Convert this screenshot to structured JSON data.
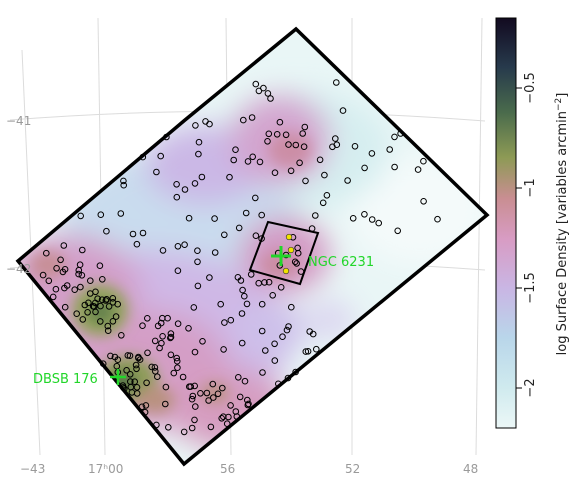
{
  "chart_data": {
    "type": "heatmap",
    "title": "",
    "colorbar": {
      "label": "log Surface Density [variables arcmin",
      "label_superscript": "−2",
      "label_close": "]",
      "range": [
        -2.2,
        -0.15
      ],
      "ticks": [
        {
          "value": -0.5,
          "label": "−0.5"
        },
        {
          "value": -1.0,
          "label": "−1"
        },
        {
          "value": -1.5,
          "label": "−1.5"
        },
        {
          "value": -2.0,
          "label": "−2"
        }
      ],
      "colors": [
        "#ecf7f7",
        "#cfeaee",
        "#b9d6ea",
        "#c9b6e4",
        "#d89cc4",
        "#c98e92",
        "#8d9a55",
        "#4a6b4c",
        "#273a4c",
        "#120a20"
      ]
    },
    "x_ticks": [
      "−43",
      "17ʰ00",
      "56",
      "52",
      "48"
    ],
    "y_ticks": [
      "−41",
      "−42"
    ],
    "annotations": [
      {
        "text": "NGC 6231"
      },
      {
        "text": "DBSB 176"
      }
    ],
    "hotspots": [
      {
        "name": "dbsb-core",
        "level": -0.85
      },
      {
        "name": "left-cluster",
        "level": -1.0
      },
      {
        "name": "lower-mid",
        "level": -1.15
      },
      {
        "name": "ngc6231",
        "level": -1.25
      },
      {
        "name": "upper-mid",
        "level": -1.3
      },
      {
        "name": "far-left",
        "level": -1.3
      }
    ]
  }
}
